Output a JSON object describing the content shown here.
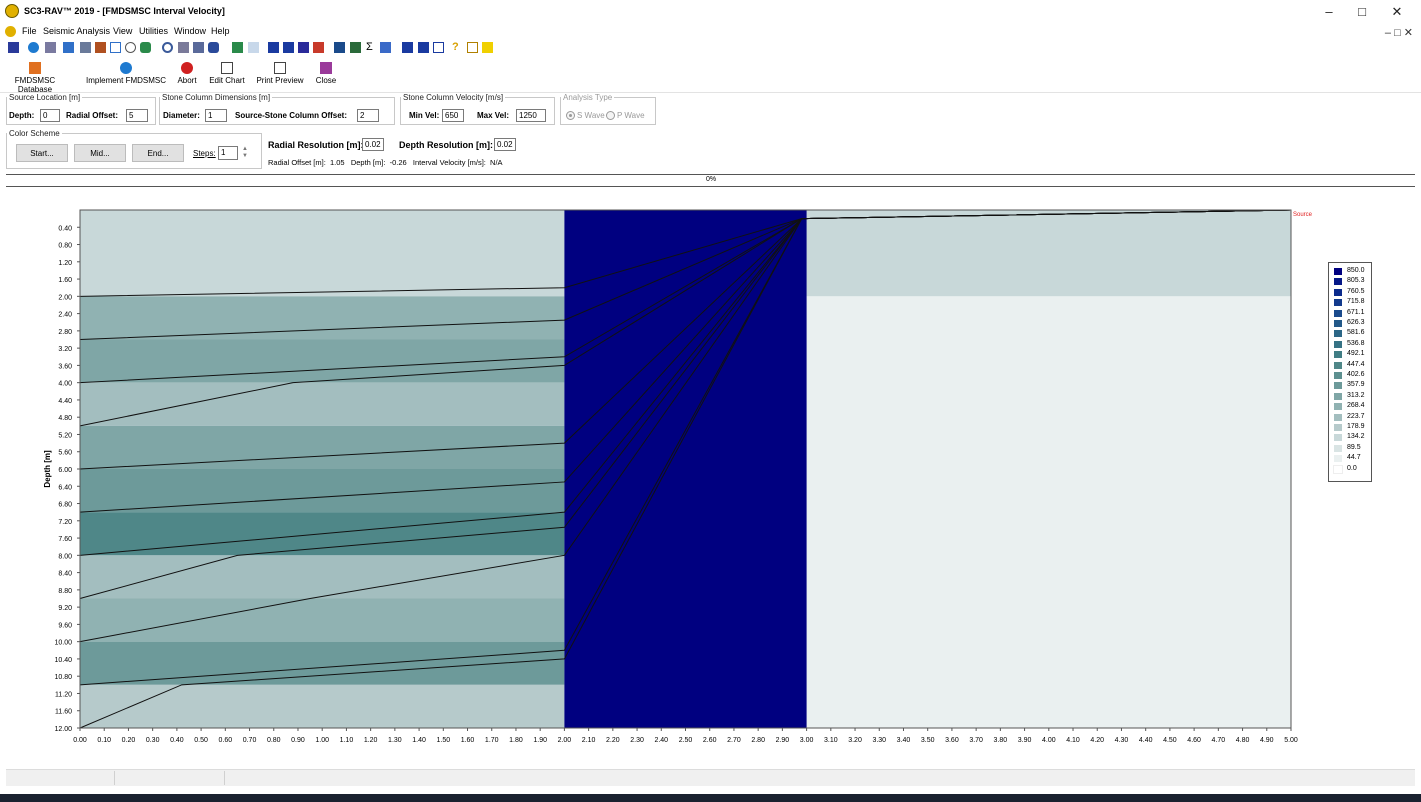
{
  "window": {
    "title": "SC3-RAV™  2019 - [FMDSMSC Interval Velocity]",
    "controls": [
      "–",
      "□",
      "✕"
    ],
    "mdi_controls": "– □ ✕"
  },
  "menu": [
    "File",
    "Seismic Analysis",
    "View",
    "Utilities",
    "Window",
    "Help"
  ],
  "toolbar_buttons": [
    "FMDSMSC Database",
    "Implement FMDSMSC",
    "Abort",
    "Edit Chart",
    "Print Preview",
    "Close"
  ],
  "source_location": {
    "legend": "Source Location [m]",
    "depth_label": "Depth:",
    "depth_value": "0",
    "offset_label": "Radial Offset:",
    "offset_value": "5"
  },
  "column_dims": {
    "legend": "Stone Column Dimensions [m]",
    "diameter_label": "Diameter:",
    "diameter_value": "1",
    "offset_label": "Source-Stone Column Offset:",
    "offset_value": "2"
  },
  "column_velocity": {
    "legend": "Stone Column Velocity [m/s]",
    "min_label": "Min Vel:",
    "min_value": "650",
    "max_label": "Max Vel:",
    "max_value": "1250"
  },
  "analysis_type": {
    "legend": "Analysis Type",
    "s_wave": "S Wave",
    "p_wave": "P Wave"
  },
  "color_scheme": {
    "legend": "Color Scheme",
    "start": "Start...",
    "mid": "Mid...",
    "end": "End...",
    "steps_label": "Steps:",
    "steps_value": "1"
  },
  "resolution": {
    "radial_label": "Radial Resolution [m]:",
    "radial_value": "0.02",
    "depth_label": "Depth Resolution [m]:",
    "depth_value": "0.02"
  },
  "readout": "Radial Offset [m]:  1.05   Depth [m]:  -0.26   Interval Velocity [m/s]:  N/A",
  "progress_text": "0%",
  "chart_data": {
    "type": "heatmap",
    "ylabel": "Depth [m]",
    "xlim": [
      0,
      5
    ],
    "ylim": [
      0,
      12
    ],
    "y_reversed": true,
    "x_ticks": [
      "0.00",
      "0.10",
      "0.20",
      "0.30",
      "0.40",
      "0.50",
      "0.60",
      "0.70",
      "0.80",
      "0.90",
      "1.00",
      "1.10",
      "1.20",
      "1.30",
      "1.40",
      "1.50",
      "1.60",
      "1.70",
      "1.80",
      "1.90",
      "2.00",
      "2.10",
      "2.20",
      "2.30",
      "2.40",
      "2.50",
      "2.60",
      "2.70",
      "2.80",
      "2.90",
      "3.00",
      "3.10",
      "3.20",
      "3.30",
      "3.40",
      "3.50",
      "3.60",
      "3.70",
      "3.80",
      "3.90",
      "4.00",
      "4.10",
      "4.20",
      "4.30",
      "4.40",
      "4.50",
      "4.60",
      "4.70",
      "4.80",
      "4.90",
      "5.00"
    ],
    "y_ticks": [
      "0.40",
      "0.80",
      "1.20",
      "1.60",
      "2.00",
      "2.40",
      "2.80",
      "3.20",
      "3.60",
      "4.00",
      "4.40",
      "4.80",
      "5.20",
      "5.60",
      "6.00",
      "6.40",
      "6.80",
      "7.20",
      "7.60",
      "8.00",
      "8.40",
      "8.80",
      "9.20",
      "9.60",
      "10.00",
      "10.40",
      "10.80",
      "11.20",
      "11.60",
      "12.00"
    ],
    "source_label": "Source",
    "layers": [
      {
        "top": 0,
        "bottom": 2,
        "velocity": 134.2
      },
      {
        "top": 2,
        "bottom": 3,
        "velocity": 268.4
      },
      {
        "top": 3,
        "bottom": 4,
        "velocity": 313.2
      },
      {
        "top": 4,
        "bottom": 5,
        "velocity": 223.7
      },
      {
        "top": 5,
        "bottom": 6,
        "velocity": 313.2
      },
      {
        "top": 6,
        "bottom": 7,
        "velocity": 357.9
      },
      {
        "top": 7,
        "bottom": 8,
        "velocity": 447.4
      },
      {
        "top": 8,
        "bottom": 9,
        "velocity": 223.7
      },
      {
        "top": 9,
        "bottom": 10,
        "velocity": 268.4
      },
      {
        "top": 10,
        "bottom": 11,
        "velocity": 357.9
      },
      {
        "top": 11,
        "bottom": 12,
        "velocity": 178.9
      }
    ],
    "column": {
      "x_start": 2.0,
      "x_end": 3.0,
      "velocity": 850.0
    },
    "right_zone": [
      {
        "x_start": 3.0,
        "x_end": 5.0,
        "top": 0,
        "bottom": 2,
        "velocity": 134.2
      },
      {
        "x_start": 3.0,
        "x_end": 5.0,
        "top": 2,
        "bottom": 12,
        "velocity": 44.7
      }
    ],
    "rays": [
      [
        [
          0.0,
          2.0
        ],
        [
          2.0,
          1.8
        ],
        [
          2.98,
          0.2
        ],
        [
          5.0,
          0.0
        ]
      ],
      [
        [
          0.0,
          3.0
        ],
        [
          2.0,
          2.55
        ],
        [
          2.98,
          0.2
        ],
        [
          5.0,
          0.0
        ]
      ],
      [
        [
          0.0,
          4.0
        ],
        [
          2.0,
          3.4
        ],
        [
          2.98,
          0.2
        ],
        [
          5.0,
          0.0
        ]
      ],
      [
        [
          0.0,
          5.0
        ],
        [
          0.88,
          4.0
        ],
        [
          2.0,
          3.6
        ],
        [
          2.98,
          0.2
        ],
        [
          5.0,
          0.0
        ]
      ],
      [
        [
          0.0,
          6.0
        ],
        [
          2.0,
          5.4
        ],
        [
          2.98,
          0.2
        ],
        [
          5.0,
          0.0
        ]
      ],
      [
        [
          0.0,
          7.0
        ],
        [
          2.0,
          6.3
        ],
        [
          2.98,
          0.2
        ],
        [
          5.0,
          0.0
        ]
      ],
      [
        [
          0.0,
          8.0
        ],
        [
          2.0,
          7.0
        ],
        [
          2.98,
          0.2
        ],
        [
          5.0,
          0.0
        ]
      ],
      [
        [
          0.0,
          9.0
        ],
        [
          0.65,
          8.0
        ],
        [
          2.0,
          7.35
        ],
        [
          2.98,
          0.2
        ],
        [
          5.0,
          0.0
        ]
      ],
      [
        [
          0.0,
          10.0
        ],
        [
          0.95,
          9.0
        ],
        [
          2.0,
          8.0
        ],
        [
          2.98,
          0.2
        ],
        [
          5.0,
          0.0
        ]
      ],
      [
        [
          0.0,
          11.0
        ],
        [
          2.0,
          10.2
        ],
        [
          2.98,
          0.2
        ],
        [
          5.0,
          0.0
        ]
      ],
      [
        [
          0.0,
          12.0
        ],
        [
          0.42,
          11.0
        ],
        [
          2.0,
          10.4
        ],
        [
          2.98,
          0.2
        ],
        [
          5.0,
          0.0
        ]
      ]
    ],
    "legend": [
      {
        "value": "850.0",
        "color": "#000080"
      },
      {
        "value": "805.3",
        "color": "#051888"
      },
      {
        "value": "760.5",
        "color": "#0b2a8c"
      },
      {
        "value": "715.8",
        "color": "#123a8c"
      },
      {
        "value": "671.1",
        "color": "#1a4a8c"
      },
      {
        "value": "626.3",
        "color": "#225888"
      },
      {
        "value": "581.6",
        "color": "#2b6686"
      },
      {
        "value": "536.8",
        "color": "#357284"
      },
      {
        "value": "492.1",
        "color": "#407d84"
      },
      {
        "value": "447.4",
        "color": "#4f8788"
      },
      {
        "value": "402.6",
        "color": "#5d9090"
      },
      {
        "value": "357.9",
        "color": "#6d9a9a"
      },
      {
        "value": "313.2",
        "color": "#7fa6a6"
      },
      {
        "value": "268.4",
        "color": "#90b2b2"
      },
      {
        "value": "223.7",
        "color": "#a3bebf"
      },
      {
        "value": "178.9",
        "color": "#b6cacb"
      },
      {
        "value": "134.2",
        "color": "#c8d8d9"
      },
      {
        "value": "89.5",
        "color": "#d9e4e4"
      },
      {
        "value": "44.7",
        "color": "#eaf0f0"
      },
      {
        "value": "0.0",
        "color": "#ffffff"
      }
    ]
  }
}
